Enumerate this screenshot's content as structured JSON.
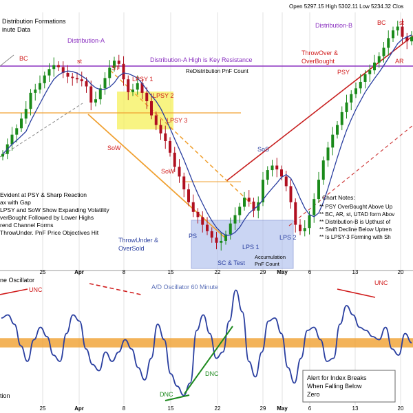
{
  "header": {
    "open_label": "Open",
    "open": "5297.15",
    "high_label": "High",
    "high": "5302.11",
    "low_label": "Low",
    "low": "5234.32",
    "close_label": "Clos"
  },
  "title_lines": [
    "Distribution Formations",
    "inute Data"
  ],
  "colors": {
    "up": "#1a8a1a",
    "down": "#b01020",
    "ma": "#2a3fa0",
    "purple": "#8a30c0",
    "red": "#d01a1a",
    "orange": "#f0a030",
    "yellow_box": "#f6f05a",
    "blue_box": "#9fb4ea",
    "grid": "#e2e2e2",
    "olive": "#c07a20",
    "green": "#1e8a1e"
  },
  "annotations": {
    "distA": "Distribution-A",
    "distB": "Distribution-B",
    "distA_res": "Distribution-A High is Key Resistance",
    "redist": "ReDistribution PnF Count",
    "bc1": "BC",
    "st1": "st",
    "st2": "ST",
    "lpsy1": "LPSY 1",
    "lpsy2": "LPSY 2",
    "lpsy3": "LPSY 3",
    "sow1": "SoW",
    "sow2": "SoW",
    "sos": "SoS",
    "throwunder": [
      "ThrowUnder &",
      "OverSold"
    ],
    "ps": "PS",
    "sc": "SC & Test",
    "lps1": "LPS 1",
    "lps2": "LPS 2",
    "accum": [
      "Accumulation",
      "PnF Count"
    ],
    "psy": "PSY",
    "bc2": "BC",
    "st3": "st",
    "ar": "AR",
    "throwover": [
      "ThrowOver &",
      "OverBought"
    ],
    "unc1": "UNC",
    "unc2": "UNC",
    "dnc1": "DNC",
    "dnc2": "DNC",
    "osc_title": "A/D Oscillator 60 Minute",
    "osc_label": "ne Oscillator",
    "osc_foot": "tion",
    "alert": [
      "Alert for Index Breaks",
      "When Falling Below",
      "Zero"
    ]
  },
  "left_notes": [
    "Evident at PSY & Sharp Reaction",
    "ax with Gap",
    "LPSY and SoW Show Expanding Volatility",
    "verBought Followed by Lower Highs",
    "rend Channel Forms",
    "ThrowUnder. PnF Price Objectives Hit"
  ],
  "chart_notes_title": "Chart Notes:",
  "chart_notes": [
    "** PSY OverBought Above Up",
    "** BC, AR, st, UTAD form Abov",
    "** Distribution-B is Upthust of",
    "** Swift Decline Below Uptren",
    "** Is LPSY-3 Forming with Sh"
  ],
  "chart_data": {
    "type": "line",
    "panels": [
      "price",
      "oscillator"
    ],
    "x_ticks": [
      "25",
      "Apr",
      "8",
      "15",
      "22",
      "29",
      "May",
      "6",
      "13",
      "20"
    ],
    "price_close": [
      5120,
      5135,
      5150,
      5160,
      5175,
      5190,
      5215,
      5220,
      5230,
      5242,
      5252,
      5258,
      5255,
      5246,
      5240,
      5238,
      5236,
      5233,
      5225,
      5200,
      5205,
      5222,
      5238,
      5254,
      5265,
      5260,
      5236,
      5216,
      5220,
      5230,
      5215,
      5202,
      5180,
      5165,
      5152,
      5140,
      5122,
      5100,
      5085,
      5065,
      5045,
      5030,
      5022,
      5010,
      5000,
      4990,
      4982,
      4985,
      4995,
      5012,
      5025,
      5038,
      5052,
      5046,
      5032,
      5045,
      5080,
      5095,
      5102,
      5096,
      5085,
      5070,
      5045,
      5010,
      5000,
      5005,
      5025,
      5050,
      5080,
      5110,
      5130,
      5150,
      5165,
      5185,
      5200,
      5213,
      5222,
      5232,
      5244,
      5250,
      5262,
      5272,
      5285,
      5300,
      5312,
      5318,
      5302,
      5295,
      5302
    ],
    "oscillator": [
      0.8,
      0.9,
      0.6,
      -0.1,
      -0.6,
      0.1,
      0.5,
      0.2,
      -0.4,
      -0.6,
      0.3,
      0.9,
      0.7,
      -0.2,
      -0.7,
      -0.9,
      -0.3,
      -0.6,
      -0.3,
      0.1,
      -0.2,
      -0.8,
      -1.2,
      -0.5,
      0.6,
      0.1,
      -1.0,
      -1.4,
      -1.7,
      -1.3,
      0.4,
      0.9,
      0.3,
      -0.5,
      -0.3,
      0.7,
      1.7,
      1.0,
      -0.6,
      -1.1,
      -0.3,
      0.7,
      0.8,
      0.3,
      -0.8,
      -1.3,
      -0.5,
      0.4,
      0.5,
      0.1,
      -0.6,
      -0.5,
      0.6,
      1.2,
      0.9,
      0.5,
      0.4,
      0.2,
      0.1,
      0.5,
      -0.2,
      -0.4,
      0.3,
      0.0
    ],
    "zero_band": [
      -0.15,
      0.15
    ],
    "xlabel": "",
    "ylabel": ""
  }
}
